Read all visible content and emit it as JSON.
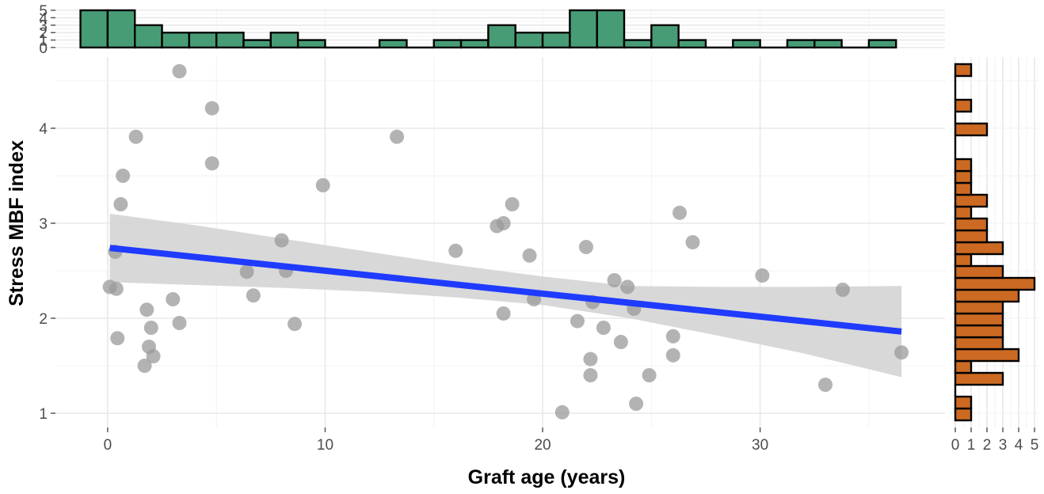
{
  "chart_data": {
    "type": "scatter",
    "xlabel": "Graft age (years)",
    "ylabel": "Stress MBF index",
    "xlim": [
      -2.4,
      38.5
    ],
    "ylim": [
      0.85,
      4.75
    ],
    "x_ticks": [
      0,
      10,
      20,
      30
    ],
    "y_ticks": [
      1,
      2,
      3,
      4
    ],
    "grid": true,
    "points": [
      {
        "x": 0.1,
        "y": 2.33
      },
      {
        "x": 0.35,
        "y": 2.7
      },
      {
        "x": 0.4,
        "y": 2.31
      },
      {
        "x": 0.45,
        "y": 1.79
      },
      {
        "x": 0.6,
        "y": 3.2
      },
      {
        "x": 0.7,
        "y": 3.5
      },
      {
        "x": 1.3,
        "y": 3.91
      },
      {
        "x": 1.7,
        "y": 1.5
      },
      {
        "x": 1.8,
        "y": 2.09
      },
      {
        "x": 1.9,
        "y": 1.7
      },
      {
        "x": 2.0,
        "y": 1.9
      },
      {
        "x": 2.1,
        "y": 1.6
      },
      {
        "x": 3.0,
        "y": 2.2
      },
      {
        "x": 3.3,
        "y": 1.95
      },
      {
        "x": 3.3,
        "y": 4.6
      },
      {
        "x": 4.8,
        "y": 3.63
      },
      {
        "x": 4.8,
        "y": 4.21
      },
      {
        "x": 6.4,
        "y": 2.49
      },
      {
        "x": 6.7,
        "y": 2.24
      },
      {
        "x": 8.0,
        "y": 2.82
      },
      {
        "x": 8.2,
        "y": 2.5
      },
      {
        "x": 8.6,
        "y": 1.94
      },
      {
        "x": 9.9,
        "y": 3.4
      },
      {
        "x": 13.3,
        "y": 3.91
      },
      {
        "x": 16.0,
        "y": 2.71
      },
      {
        "x": 17.9,
        "y": 2.97
      },
      {
        "x": 18.2,
        "y": 3.0
      },
      {
        "x": 18.2,
        "y": 2.05
      },
      {
        "x": 18.6,
        "y": 3.2
      },
      {
        "x": 19.4,
        "y": 2.66
      },
      {
        "x": 19.6,
        "y": 2.2
      },
      {
        "x": 20.9,
        "y": 1.01
      },
      {
        "x": 21.6,
        "y": 1.97
      },
      {
        "x": 22.0,
        "y": 2.75
      },
      {
        "x": 22.2,
        "y": 1.57
      },
      {
        "x": 22.2,
        "y": 1.4
      },
      {
        "x": 22.3,
        "y": 2.17
      },
      {
        "x": 22.8,
        "y": 1.9
      },
      {
        "x": 23.3,
        "y": 2.4
      },
      {
        "x": 23.6,
        "y": 1.75
      },
      {
        "x": 23.9,
        "y": 2.33
      },
      {
        "x": 24.2,
        "y": 2.1
      },
      {
        "x": 24.3,
        "y": 1.1
      },
      {
        "x": 24.9,
        "y": 1.4
      },
      {
        "x": 26.0,
        "y": 1.61
      },
      {
        "x": 26.0,
        "y": 1.81
      },
      {
        "x": 26.3,
        "y": 3.11
      },
      {
        "x": 26.9,
        "y": 2.8
      },
      {
        "x": 30.1,
        "y": 2.45
      },
      {
        "x": 33.0,
        "y": 1.3
      },
      {
        "x": 33.8,
        "y": 2.3
      },
      {
        "x": 36.5,
        "y": 1.64
      }
    ],
    "trend_line": {
      "x": [
        0.1,
        36.5
      ],
      "y": [
        2.74,
        1.86
      ]
    },
    "confidence_band": {
      "x": [
        0.1,
        4,
        8,
        12,
        16,
        20,
        24,
        28,
        32,
        36.5
      ],
      "lower": [
        2.38,
        2.35,
        2.32,
        2.28,
        2.22,
        2.14,
        2.0,
        1.82,
        1.63,
        1.38
      ],
      "upper": [
        3.1,
        2.98,
        2.84,
        2.7,
        2.56,
        2.44,
        2.34,
        2.33,
        2.33,
        2.34
      ]
    },
    "top_histogram": {
      "y_ticks": [
        0,
        1,
        2,
        3,
        4,
        5
      ],
      "bins": [
        {
          "x0": -1.25,
          "x1": 0.0,
          "count": 5
        },
        {
          "x0": 0.0,
          "x1": 1.25,
          "count": 5
        },
        {
          "x0": 1.25,
          "x1": 2.5,
          "count": 3
        },
        {
          "x0": 2.5,
          "x1": 3.75,
          "count": 2
        },
        {
          "x0": 3.75,
          "x1": 5.0,
          "count": 2
        },
        {
          "x0": 5.0,
          "x1": 6.25,
          "count": 2
        },
        {
          "x0": 6.25,
          "x1": 7.5,
          "count": 1
        },
        {
          "x0": 7.5,
          "x1": 8.75,
          "count": 2
        },
        {
          "x0": 8.75,
          "x1": 10.0,
          "count": 1
        },
        {
          "x0": 10.0,
          "x1": 11.25,
          "count": 0
        },
        {
          "x0": 11.25,
          "x1": 12.5,
          "count": 0
        },
        {
          "x0": 12.5,
          "x1": 13.75,
          "count": 1
        },
        {
          "x0": 13.75,
          "x1": 15.0,
          "count": 0
        },
        {
          "x0": 15.0,
          "x1": 16.25,
          "count": 1
        },
        {
          "x0": 16.25,
          "x1": 17.5,
          "count": 1
        },
        {
          "x0": 17.5,
          "x1": 18.75,
          "count": 3
        },
        {
          "x0": 18.75,
          "x1": 20.0,
          "count": 2
        },
        {
          "x0": 20.0,
          "x1": 21.25,
          "count": 2
        },
        {
          "x0": 21.25,
          "x1": 22.5,
          "count": 5
        },
        {
          "x0": 22.5,
          "x1": 23.75,
          "count": 5
        },
        {
          "x0": 23.75,
          "x1": 25.0,
          "count": 1
        },
        {
          "x0": 25.0,
          "x1": 26.25,
          "count": 3
        },
        {
          "x0": 26.25,
          "x1": 27.5,
          "count": 1
        },
        {
          "x0": 27.5,
          "x1": 28.75,
          "count": 0
        },
        {
          "x0": 28.75,
          "x1": 30.0,
          "count": 1
        },
        {
          "x0": 30.0,
          "x1": 31.25,
          "count": 0
        },
        {
          "x0": 31.25,
          "x1": 32.5,
          "count": 1
        },
        {
          "x0": 32.5,
          "x1": 33.75,
          "count": 1
        },
        {
          "x0": 33.75,
          "x1": 35.0,
          "count": 0
        },
        {
          "x0": 35.0,
          "x1": 36.25,
          "count": 1
        }
      ]
    },
    "right_histogram": {
      "x_ticks": [
        0,
        1,
        2,
        3,
        4,
        5
      ],
      "bins": [
        {
          "y0": 0.925,
          "y1": 1.05,
          "count": 1
        },
        {
          "y0": 1.05,
          "y1": 1.175,
          "count": 1
        },
        {
          "y0": 1.175,
          "y1": 1.3,
          "count": 0
        },
        {
          "y0": 1.3,
          "y1": 1.425,
          "count": 3
        },
        {
          "y0": 1.425,
          "y1": 1.55,
          "count": 1
        },
        {
          "y0": 1.55,
          "y1": 1.675,
          "count": 4
        },
        {
          "y0": 1.675,
          "y1": 1.8,
          "count": 3
        },
        {
          "y0": 1.8,
          "y1": 1.925,
          "count": 3
        },
        {
          "y0": 1.925,
          "y1": 2.05,
          "count": 3
        },
        {
          "y0": 2.05,
          "y1": 2.175,
          "count": 3
        },
        {
          "y0": 2.175,
          "y1": 2.3,
          "count": 4
        },
        {
          "y0": 2.3,
          "y1": 2.425,
          "count": 5
        },
        {
          "y0": 2.425,
          "y1": 2.55,
          "count": 3
        },
        {
          "y0": 2.55,
          "y1": 2.675,
          "count": 1
        },
        {
          "y0": 2.675,
          "y1": 2.8,
          "count": 3
        },
        {
          "y0": 2.8,
          "y1": 2.925,
          "count": 2
        },
        {
          "y0": 2.925,
          "y1": 3.05,
          "count": 2
        },
        {
          "y0": 3.05,
          "y1": 3.175,
          "count": 1
        },
        {
          "y0": 3.175,
          "y1": 3.3,
          "count": 2
        },
        {
          "y0": 3.3,
          "y1": 3.425,
          "count": 1
        },
        {
          "y0": 3.425,
          "y1": 3.55,
          "count": 1
        },
        {
          "y0": 3.55,
          "y1": 3.675,
          "count": 1
        },
        {
          "y0": 3.675,
          "y1": 3.8,
          "count": 0
        },
        {
          "y0": 3.8,
          "y1": 3.925,
          "count": 0
        },
        {
          "y0": 3.925,
          "y1": 4.05,
          "count": 2
        },
        {
          "y0": 4.05,
          "y1": 4.175,
          "count": 0
        },
        {
          "y0": 4.175,
          "y1": 4.3,
          "count": 1
        },
        {
          "y0": 4.3,
          "y1": 4.425,
          "count": 0
        },
        {
          "y0": 4.425,
          "y1": 4.55,
          "count": 0
        },
        {
          "y0": 4.55,
          "y1": 4.675,
          "count": 1
        }
      ]
    },
    "colors": {
      "points": "#999999",
      "trend_line": "#1f3bff",
      "confidence_band": "#d4d4d4",
      "top_histogram": "#479c76",
      "right_histogram": "#cc6a23",
      "bar_outline": "#000000"
    }
  }
}
